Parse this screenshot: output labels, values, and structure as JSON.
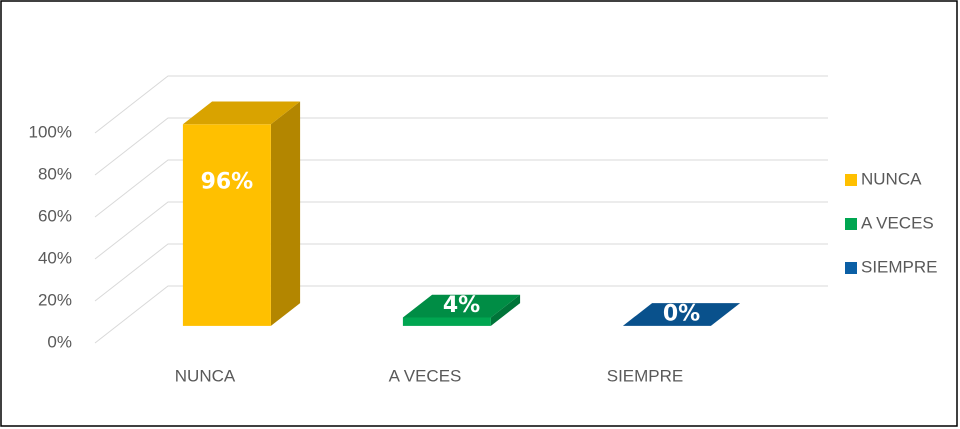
{
  "chart_data": {
    "type": "bar3d",
    "categories": [
      "NUNCA",
      "A VECES",
      "SIEMPRE"
    ],
    "values": [
      96,
      4,
      0
    ],
    "value_labels": [
      "96%",
      "4%",
      "0%"
    ],
    "colors": [
      "#FFC000",
      "#00A651",
      "#0B5FA5"
    ],
    "ylim": [
      0,
      100
    ],
    "yticks": [
      {
        "value": 0,
        "label": "0%"
      },
      {
        "value": 20,
        "label": "20%"
      },
      {
        "value": 40,
        "label": "40%"
      },
      {
        "value": 60,
        "label": "60%"
      },
      {
        "value": 80,
        "label": "80%"
      },
      {
        "value": 100,
        "label": "100%"
      }
    ],
    "grid": true,
    "legend": "right"
  }
}
